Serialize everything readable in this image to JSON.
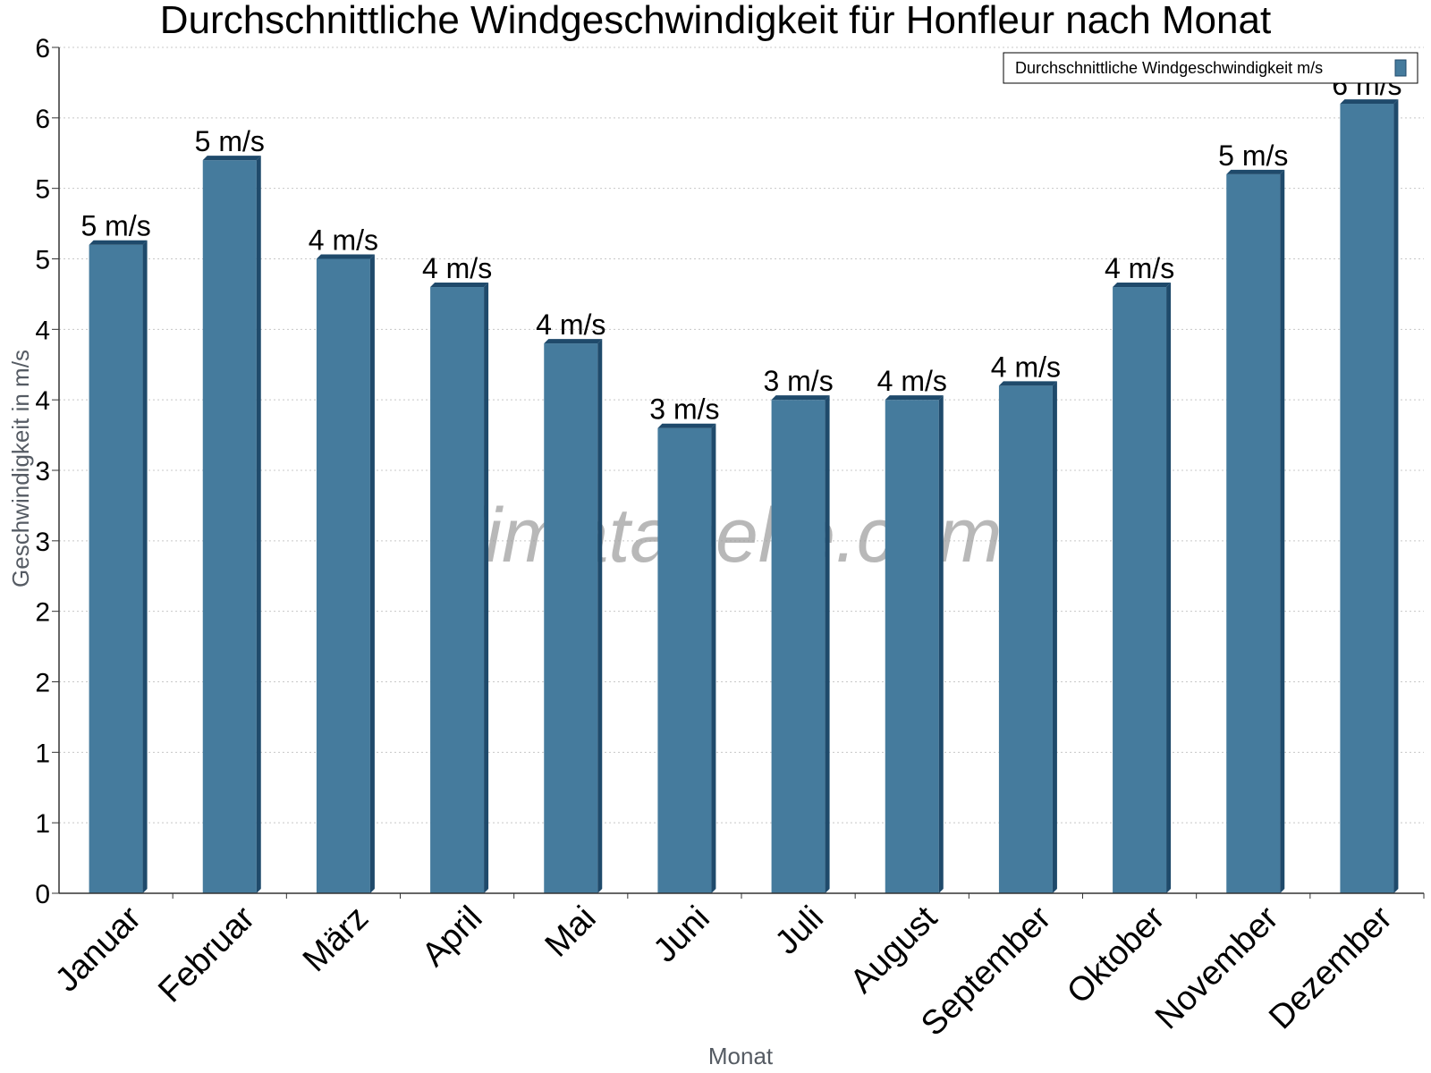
{
  "chart_data": {
    "type": "bar",
    "title": "Durchschnittliche Windgeschwindigkeit für Honfleur nach Monat",
    "xlabel": "Monat",
    "ylabel": "Geschwindigkeit in m/s",
    "categories": [
      "Januar",
      "Februar",
      "März",
      "April",
      "Mai",
      "Juni",
      "Juli",
      "August",
      "September",
      "Oktober",
      "November",
      "Dezember"
    ],
    "series": [
      {
        "name": "Durchschnittliche Windgeschwindigkeit m/s",
        "values": [
          4.6,
          5.2,
          4.5,
          4.3,
          3.9,
          3.3,
          3.5,
          3.5,
          3.6,
          4.3,
          5.1,
          5.6
        ],
        "labels": [
          "5 m/s",
          "5 m/s",
          "4 m/s",
          "4 m/s",
          "4 m/s",
          "3 m/s",
          "3 m/s",
          "4 m/s",
          "4 m/s",
          "4 m/s",
          "5 m/s",
          "6 m/s"
        ]
      }
    ],
    "ylim": [
      0,
      6
    ],
    "yticks": [
      0,
      0.5,
      1,
      1.5,
      2,
      2.5,
      3,
      3.5,
      4,
      4.5,
      5,
      5.5,
      6
    ],
    "ytick_labels": [
      "0",
      "1",
      "1",
      "2",
      "2",
      "3",
      "3",
      "4",
      "4",
      "5",
      "5",
      "6",
      "6"
    ],
    "grid": true,
    "legend_position": "top-right",
    "watermark": "klimatabelle.com",
    "colors": {
      "bar": "#457b9d",
      "bar_dark": "#1f4a6b",
      "grid": "#c8c8c8",
      "axis": "#333333"
    }
  }
}
